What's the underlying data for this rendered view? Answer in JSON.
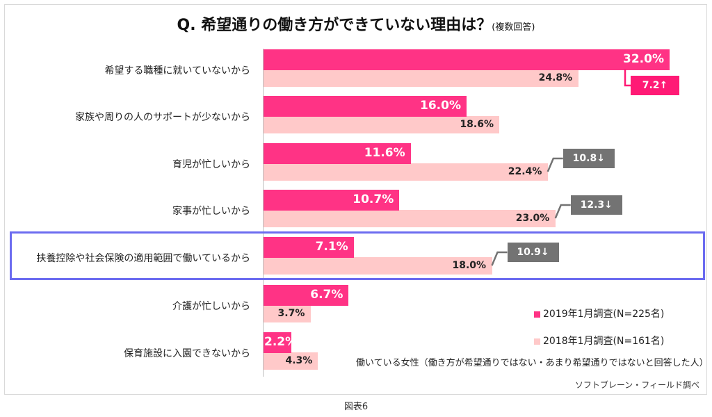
{
  "chart_data": {
    "type": "bar",
    "orientation": "horizontal",
    "title": "Q.  希望通りの働き方ができていない理由は？",
    "subtitle": "(複数回答)",
    "categories": [
      "希望する職種に就いていないから",
      "家族や周りの人のサポートが少ないから",
      "育児が忙しいから",
      "家事が忙しいから",
      "扶養控除や社会保険の適用範囲で働いているから",
      "介護が忙しいから",
      "保育施設に入園できないから"
    ],
    "series": [
      {
        "name": "2019年1月調査(N=225名)",
        "color": "#ff3385",
        "values": [
          32.0,
          16.0,
          11.6,
          10.7,
          7.1,
          6.7,
          2.2
        ],
        "labels": [
          "32.0%",
          "16.0%",
          "11.6%",
          "10.7%",
          "7.1%",
          "6.7%",
          "2.2%"
        ]
      },
      {
        "name": "2018年1月調査(N=161名)",
        "color": "#ffc9c9",
        "values": [
          24.8,
          18.6,
          22.4,
          23.0,
          18.0,
          3.7,
          4.3
        ],
        "labels": [
          "24.8%",
          "18.6%",
          "22.4%",
          "23.0%",
          "18.0%",
          "3.7%",
          "4.3%"
        ]
      }
    ],
    "differences": [
      {
        "category_index": 0,
        "label": "7.2↑",
        "color": "#ff1a75"
      },
      {
        "category_index": 2,
        "label": "10.8↓",
        "color": "#737373"
      },
      {
        "category_index": 3,
        "label": "12.3↓",
        "color": "#737373"
      },
      {
        "category_index": 4,
        "label": "10.9↓",
        "color": "#737373"
      }
    ],
    "highlighted_category_index": 4,
    "legend_position": "bottom-right",
    "xlim": [
      0,
      35
    ],
    "grid": false,
    "note": "働いている女性（働き方が希望通りではない・あまり希望通りではないと回答した人）",
    "source": "ソフトブレーン・フィールド調べ"
  },
  "caption": "図表6"
}
